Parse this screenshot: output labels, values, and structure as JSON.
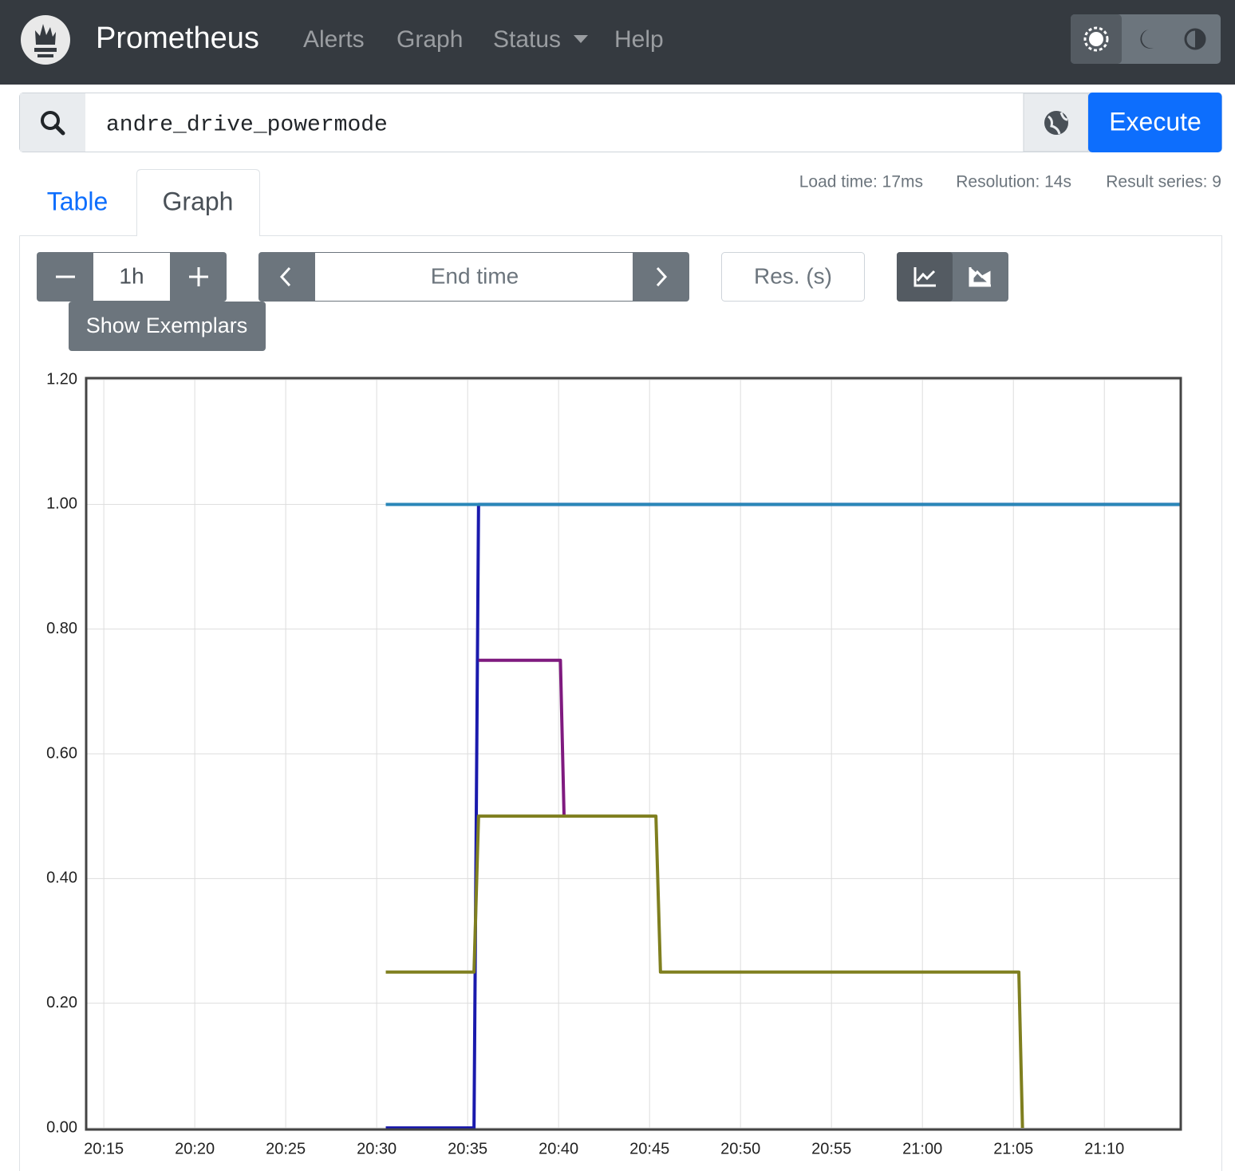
{
  "nav": {
    "brand": "Prometheus",
    "links": [
      "Alerts",
      "Graph",
      "Status",
      "Help"
    ]
  },
  "query": {
    "expression": "andre_drive_powermode",
    "execute": "Execute"
  },
  "tabs": [
    "Table",
    "Graph"
  ],
  "stats": [
    "Load time: 17ms",
    "Resolution: 14s",
    "Result series: 9"
  ],
  "controls": {
    "range": "1h",
    "end_time": "End time",
    "resolution": "Res. (s)",
    "exemplars": "Show Exemplars"
  },
  "chart_data": {
    "type": "line",
    "xlim": [
      1214.03,
      1274.2
    ],
    "xticks": [
      {
        "value": 1215,
        "label": "20:15"
      },
      {
        "value": 1220,
        "label": "20:20"
      },
      {
        "value": 1225,
        "label": "20:25"
      },
      {
        "value": 1230,
        "label": "20:30"
      },
      {
        "value": 1235,
        "label": "20:35"
      },
      {
        "value": 1240,
        "label": "20:40"
      },
      {
        "value": 1245,
        "label": "20:45"
      },
      {
        "value": 1250,
        "label": "20:50"
      },
      {
        "value": 1255,
        "label": "20:55"
      },
      {
        "value": 1260,
        "label": "21:00"
      },
      {
        "value": 1265,
        "label": "21:05"
      },
      {
        "value": 1270,
        "label": "21:10"
      }
    ],
    "ylim": [
      0,
      1.2
    ],
    "yticks": [
      {
        "value": 0,
        "label": "0.00"
      },
      {
        "value": 0.2,
        "label": "0.20"
      },
      {
        "value": 0.4,
        "label": "0.40"
      },
      {
        "value": 0.6,
        "label": "0.60"
      },
      {
        "value": 0.8,
        "label": "0.80"
      },
      {
        "value": 1,
        "label": "1.00"
      },
      {
        "value": 1.2,
        "label": "1.20"
      }
    ],
    "grid": true,
    "series": [
      {
        "color": "#1a1aad",
        "x": [
          1230.5,
          1235.35,
          1235.6,
          1274.2
        ],
        "values": [
          0,
          0,
          1,
          1
        ]
      },
      {
        "color": "#7f1a7f",
        "x": [
          1235.6,
          1240.1,
          1240.3
        ],
        "values": [
          0.75,
          0.75,
          0.5
        ]
      },
      {
        "color": "#7f7f1f",
        "x": [
          1230.5,
          1235.35,
          1235.6,
          1245.35,
          1245.6,
          1265.3,
          1265.5
        ],
        "values": [
          0.25,
          0.25,
          0.5,
          0.5,
          0.25,
          0.25,
          0
        ]
      },
      {
        "color": "#2a87b8",
        "x": [
          1230.5,
          1274.2
        ],
        "values": [
          1,
          1
        ]
      }
    ]
  }
}
